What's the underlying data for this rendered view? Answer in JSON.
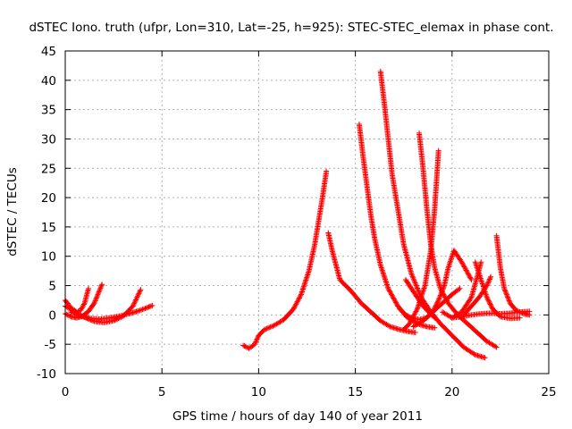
{
  "chart_data": {
    "type": "scatter",
    "title": "dSTEC Iono. truth (ufpr, Lon=310, Lat=-25, h=925): STEC-STEC_elemax in phase cont.",
    "xlabel": "GPS time / hours of day 140 of year 2011",
    "ylabel": "dSTEC  / TECUs",
    "xlim": [
      0,
      25
    ],
    "ylim": [
      -10,
      45
    ],
    "xticks": [
      "0",
      "5",
      "10",
      "15",
      "20",
      "25"
    ],
    "yticks": [
      "-10",
      "-5",
      "0",
      "5",
      "10",
      "15",
      "20",
      "25",
      "30",
      "35",
      "40",
      "45"
    ],
    "grid": true,
    "marker": "+",
    "color": "#ff0000",
    "series": [
      {
        "x": [
          0.0,
          0.3,
          0.6,
          0.8,
          1.0,
          1.2
        ],
        "y": [
          2.5,
          1.2,
          0.5,
          0.8,
          2.0,
          4.5
        ]
      },
      {
        "x": [
          0.0,
          0.3,
          0.6,
          0.9,
          1.2,
          1.5,
          1.9
        ],
        "y": [
          0.2,
          -0.3,
          -0.5,
          -0.2,
          0.6,
          2.0,
          5.2
        ]
      },
      {
        "x": [
          0.0,
          0.5,
          1.0,
          1.5,
          2.0,
          2.5,
          3.0,
          3.5,
          3.9
        ],
        "y": [
          1.5,
          0.5,
          -0.4,
          -1.1,
          -1.3,
          -1.0,
          -0.2,
          1.5,
          4.3
        ]
      },
      {
        "x": [
          0.3,
          0.8,
          1.3,
          1.8,
          2.3,
          2.8,
          3.3,
          3.8,
          4.2,
          4.5
        ],
        "y": [
          0.5,
          -0.2,
          -0.6,
          -0.7,
          -0.5,
          -0.2,
          0.2,
          0.7,
          1.2,
          1.6
        ]
      },
      {
        "x": [
          9.2,
          9.5,
          9.8,
          10.0,
          10.3,
          10.8,
          11.3,
          11.8,
          12.2,
          12.6,
          12.9,
          13.1,
          13.3,
          13.5
        ],
        "y": [
          -5.2,
          -5.7,
          -5.0,
          -3.5,
          -2.5,
          -1.8,
          -0.8,
          1.0,
          3.5,
          7.5,
          12.0,
          16.0,
          20.0,
          24.5
        ]
      },
      {
        "x": [
          13.6,
          13.8,
          14.2,
          14.8,
          15.3,
          15.8,
          16.3,
          16.8,
          17.3,
          17.7,
          18.1
        ],
        "y": [
          14.0,
          11.0,
          6.0,
          4.0,
          2.0,
          0.5,
          -1.0,
          -2.0,
          -2.5,
          -2.8,
          -3.0
        ]
      },
      {
        "x": [
          15.2,
          15.4,
          15.6,
          15.8,
          16.0,
          16.3,
          16.7,
          17.2,
          17.7,
          18.2,
          18.7,
          19.1
        ],
        "y": [
          32.5,
          27.0,
          22.0,
          17.0,
          13.0,
          8.5,
          4.5,
          1.5,
          -0.5,
          -1.5,
          -2.0,
          -2.2
        ]
      },
      {
        "x": [
          16.3,
          16.5,
          16.7,
          16.9,
          17.2,
          17.5,
          17.9,
          18.4,
          18.9,
          19.4,
          20.0,
          20.6,
          21.2,
          21.7
        ],
        "y": [
          41.5,
          36.0,
          30.0,
          24.0,
          18.0,
          12.0,
          7.0,
          3.0,
          0.5,
          -1.5,
          -3.5,
          -5.5,
          -6.8,
          -7.3
        ]
      },
      {
        "x": [
          18.3,
          18.5,
          18.7,
          18.9,
          19.1,
          19.4,
          19.8,
          20.3,
          20.8,
          21.3,
          21.8,
          22.3
        ],
        "y": [
          31.0,
          25.0,
          18.0,
          12.0,
          8.0,
          4.5,
          2.0,
          0.0,
          -1.5,
          -3.0,
          -4.5,
          -5.5
        ]
      },
      {
        "x": [
          17.3,
          17.6,
          17.9,
          18.3,
          18.7,
          19.0,
          19.3,
          19.6,
          19.8,
          20.1,
          20.5,
          21.0
        ],
        "y": [
          1.0,
          0.0,
          -0.5,
          -0.8,
          -0.5,
          0.5,
          2.5,
          5.0,
          8.0,
          11.0,
          9.0,
          6.0
        ]
      },
      {
        "x": [
          17.5,
          17.8,
          18.2,
          18.6,
          18.9,
          19.1,
          19.3
        ],
        "y": [
          -2.5,
          -1.5,
          1.0,
          5.0,
          11.0,
          18.0,
          28.0
        ]
      },
      {
        "x": [
          17.6,
          17.9,
          18.2,
          18.5,
          18.8,
          19.1
        ],
        "y": [
          6.0,
          4.5,
          3.0,
          1.5,
          0.5,
          -0.5
        ]
      },
      {
        "x": [
          18.0,
          18.5,
          19.0,
          19.5,
          20.0,
          20.4
        ],
        "y": [
          -2.0,
          -1.0,
          0.5,
          2.0,
          3.5,
          4.5
        ]
      },
      {
        "x": [
          19.5,
          20.0,
          20.5,
          21.0,
          21.3,
          21.5
        ],
        "y": [
          0.5,
          -0.5,
          0.5,
          3.0,
          6.5,
          9.0
        ]
      },
      {
        "x": [
          20.6,
          21.0,
          21.4,
          21.8,
          22.0
        ],
        "y": [
          0.0,
          1.5,
          3.0,
          5.0,
          6.5
        ]
      },
      {
        "x": [
          21.2,
          21.5,
          21.8,
          22.1,
          22.5,
          23.0,
          23.5
        ],
        "y": [
          9.0,
          6.0,
          3.0,
          1.0,
          -0.3,
          -0.6,
          -0.5
        ]
      },
      {
        "x": [
          22.3,
          22.5,
          22.7,
          23.0,
          23.3,
          23.7,
          24.0
        ],
        "y": [
          13.5,
          8.0,
          4.5,
          2.0,
          0.8,
          0.2,
          0.0
        ]
      },
      {
        "x": [
          20.0,
          20.5,
          21.0,
          21.5,
          22.0,
          22.5,
          23.0,
          23.5,
          24.0
        ],
        "y": [
          -0.5,
          -0.3,
          0.0,
          0.2,
          0.3,
          0.2,
          0.3,
          0.5,
          0.6
        ]
      }
    ]
  }
}
